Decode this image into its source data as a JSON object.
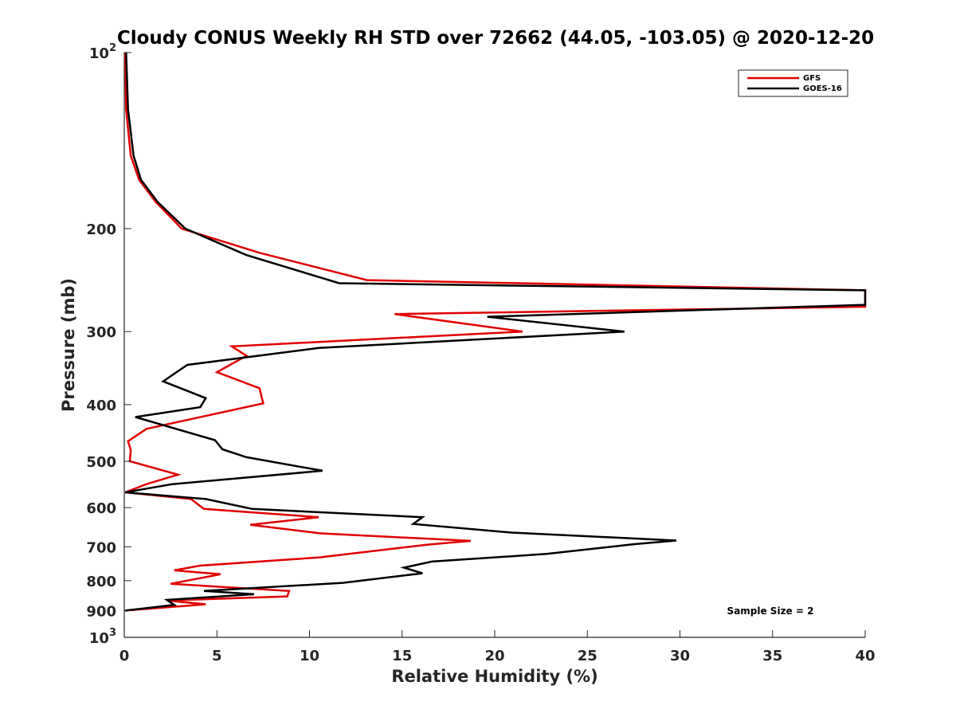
{
  "chart_data": {
    "type": "line",
    "title": "Cloudy CONUS Weekly RH STD over 72662 (44.05, -103.05) @ 2020-12-20",
    "xlabel": "Relative Humidity (%)",
    "ylabel": "Pressure (mb)",
    "xlim": [
      0,
      40
    ],
    "ylim": [
      100,
      1000
    ],
    "yscale": "log",
    "y_reversed": true,
    "x_ticks": [
      "0",
      "5",
      "10",
      "15",
      "20",
      "25",
      "30",
      "35",
      "40"
    ],
    "y_ticks": [
      {
        "value": 100,
        "base": "10",
        "exp": "2"
      },
      {
        "value": 200,
        "label": "200"
      },
      {
        "value": 300,
        "label": "300"
      },
      {
        "value": 400,
        "label": "400"
      },
      {
        "value": 500,
        "label": "500"
      },
      {
        "value": 600,
        "label": "600"
      },
      {
        "value": 700,
        "label": "700"
      },
      {
        "value": 800,
        "label": "800"
      },
      {
        "value": 900,
        "label": "900"
      },
      {
        "value": 1000,
        "base": "10",
        "exp": "3"
      }
    ],
    "legend_position": "top-right",
    "grid": false,
    "annotation": "Sample Size = 2",
    "series": [
      {
        "name": "GFS",
        "color": "#e00000",
        "points": [
          [
            0.05,
            100
          ],
          [
            0.1,
            125
          ],
          [
            0.35,
            150
          ],
          [
            0.8,
            165
          ],
          [
            1.7,
            180
          ],
          [
            3.1,
            200
          ],
          [
            7.3,
            220
          ],
          [
            13.1,
            245
          ],
          [
            40,
            255
          ],
          [
            40,
            272
          ],
          [
            14.6,
            280
          ],
          [
            21.5,
            300
          ],
          [
            5.8,
            318
          ],
          [
            6.6,
            330
          ],
          [
            5.0,
            352
          ],
          [
            7.3,
            375
          ],
          [
            7.5,
            398
          ],
          [
            1.2,
            440
          ],
          [
            0.2,
            462
          ],
          [
            0.35,
            478
          ],
          [
            0.3,
            500
          ],
          [
            2.9,
            527
          ],
          [
            1.2,
            547
          ],
          [
            0.05,
            565
          ],
          [
            3.6,
            580
          ],
          [
            4.3,
            603
          ],
          [
            10.5,
            623
          ],
          [
            6.8,
            642
          ],
          [
            10.6,
            664
          ],
          [
            18.7,
            684
          ],
          [
            16.4,
            694
          ],
          [
            10.5,
            730
          ],
          [
            4.1,
            754
          ],
          [
            2.7,
            768
          ],
          [
            5.2,
            780
          ],
          [
            2.5,
            810
          ],
          [
            8.9,
            833
          ],
          [
            8.8,
            851
          ],
          [
            2.3,
            865
          ],
          [
            4.4,
            878
          ],
          [
            0.05,
            900
          ]
        ]
      },
      {
        "name": "GOES-16",
        "color": "#000000",
        "points": [
          [
            0.1,
            100
          ],
          [
            0.2,
            125
          ],
          [
            0.5,
            150
          ],
          [
            0.9,
            165
          ],
          [
            1.8,
            180
          ],
          [
            3.3,
            200
          ],
          [
            6.6,
            222
          ],
          [
            11.6,
            248
          ],
          [
            40,
            255
          ],
          [
            40,
            270
          ],
          [
            19.6,
            283
          ],
          [
            27.0,
            300
          ],
          [
            10.5,
            320
          ],
          [
            3.4,
            342
          ],
          [
            2.1,
            365
          ],
          [
            4.4,
            390
          ],
          [
            4.1,
            404
          ],
          [
            0.6,
            420
          ],
          [
            4.9,
            460
          ],
          [
            5.3,
            477
          ],
          [
            6.6,
            492
          ],
          [
            10.7,
            519
          ],
          [
            2.6,
            547
          ],
          [
            0.05,
            565
          ],
          [
            4.4,
            580
          ],
          [
            6.9,
            603
          ],
          [
            16.1,
            623
          ],
          [
            15.6,
            640
          ],
          [
            20.9,
            662
          ],
          [
            29.8,
            683
          ],
          [
            27.5,
            693
          ],
          [
            22.8,
            720
          ],
          [
            16.6,
            742
          ],
          [
            15.1,
            760
          ],
          [
            16.1,
            777
          ],
          [
            11.8,
            807
          ],
          [
            4.3,
            833
          ],
          [
            7.0,
            844
          ],
          [
            2.3,
            863
          ],
          [
            2.7,
            880
          ],
          [
            0.05,
            900
          ]
        ]
      }
    ]
  }
}
